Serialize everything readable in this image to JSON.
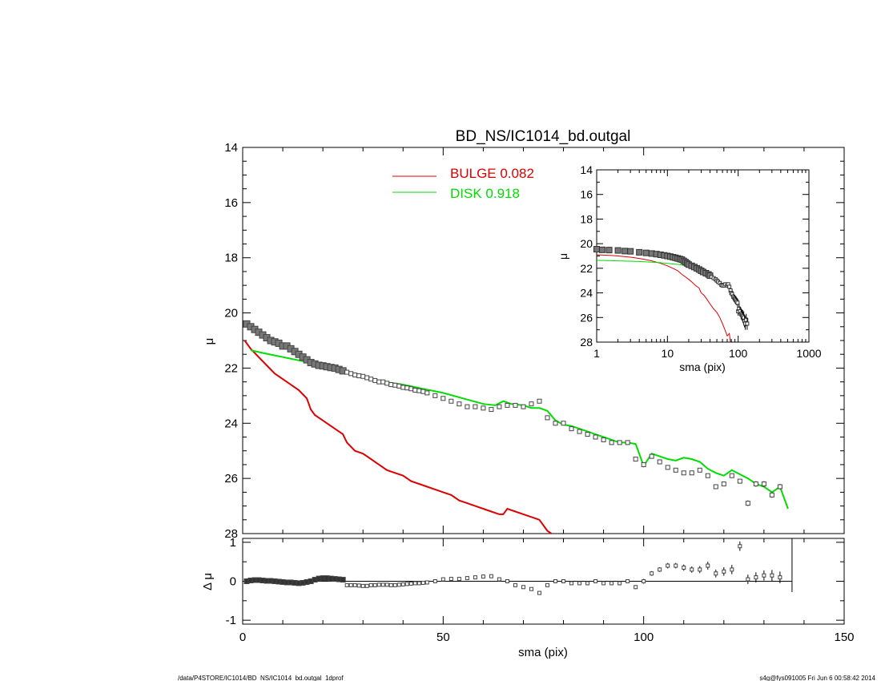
{
  "title": "BD_NS/IC1014_bd.outgal",
  "footer": {
    "left": "/data/P4STORE/IC1014/BD_NS/IC1014_bd.outgal_1dprof",
    "right": "s4g@fys091005  Fri Jun  6 00:58:42 2014"
  },
  "legend": [
    {
      "label": "BULGE  0.082",
      "color": "#dd0000"
    },
    {
      "label": "DISK  0.918",
      "color": "#00dd00"
    }
  ],
  "colors": {
    "bulge": "#dd0000",
    "disk": "#00dd00",
    "data": "#000000"
  },
  "chart_data": [
    {
      "type": "scatter",
      "panel": "main",
      "xlabel": "",
      "ylabel": "μ",
      "xlim": [
        0,
        150
      ],
      "ylim": [
        28,
        14
      ],
      "y_inverted": true,
      "yticks": [
        "14",
        "16",
        "18",
        "20",
        "22",
        "24",
        "26",
        "28"
      ],
      "data_points": {
        "x": [
          1,
          2,
          3,
          4,
          5,
          6,
          7,
          8,
          9,
          10,
          11,
          12,
          13,
          14,
          15,
          16,
          17,
          18,
          19,
          20,
          21,
          22,
          23,
          24,
          25,
          26,
          27,
          28,
          29,
          30,
          31,
          32,
          33,
          34,
          35,
          36,
          37,
          38,
          39,
          40,
          41,
          42,
          43,
          44,
          45,
          46,
          48,
          50,
          52,
          54,
          56,
          58,
          60,
          62,
          64,
          66,
          68,
          70,
          72,
          74,
          76,
          78,
          80,
          82,
          84,
          86,
          88,
          90,
          92,
          94,
          96,
          98,
          100,
          102,
          104,
          106,
          108,
          110,
          112,
          114,
          116,
          118,
          120,
          122,
          124,
          126,
          128,
          130,
          132,
          134
        ],
        "y": [
          20.4,
          20.5,
          20.6,
          20.7,
          20.8,
          20.9,
          21.0,
          21.05,
          21.1,
          21.2,
          21.2,
          21.3,
          21.4,
          21.5,
          21.6,
          21.7,
          21.8,
          21.85,
          21.9,
          21.92,
          21.95,
          21.98,
          22.0,
          22.05,
          22.1,
          22.15,
          22.2,
          22.25,
          22.28,
          22.3,
          22.35,
          22.4,
          22.45,
          22.5,
          22.5,
          22.55,
          22.6,
          22.62,
          22.65,
          22.7,
          22.72,
          22.75,
          22.8,
          22.82,
          22.85,
          22.9,
          23.0,
          23.1,
          23.2,
          23.3,
          23.4,
          23.4,
          23.45,
          23.5,
          23.4,
          23.35,
          23.35,
          23.4,
          23.3,
          23.2,
          23.8,
          24.0,
          24.0,
          24.2,
          24.3,
          24.4,
          24.5,
          24.6,
          24.7,
          24.7,
          24.7,
          25.3,
          25.5,
          25.2,
          25.4,
          25.6,
          25.7,
          25.8,
          25.8,
          25.7,
          25.9,
          26.3,
          26.2,
          25.9,
          26.1,
          26.9,
          26.2,
          26.2,
          26.6,
          26.3
        ],
        "err": [
          0.03,
          0.03,
          0.03,
          0.03,
          0.03,
          0.03,
          0.03,
          0.03,
          0.03,
          0.03,
          0.03,
          0.03,
          0.03,
          0.03,
          0.03,
          0.03,
          0.03,
          0.03,
          0.03,
          0.03,
          0.03,
          0.03,
          0.03,
          0.03,
          0.03,
          0.03,
          0.03,
          0.03,
          0.03,
          0.03,
          0.03,
          0.03,
          0.03,
          0.03,
          0.03,
          0.03,
          0.03,
          0.03,
          0.03,
          0.03,
          0.03,
          0.03,
          0.03,
          0.03,
          0.03,
          0.03,
          0.03,
          0.03,
          0.03,
          0.03,
          0.03,
          0.03,
          0.03,
          0.03,
          0.03,
          0.03,
          0.03,
          0.03,
          0.03,
          0.03,
          0.03,
          0.03,
          0.03,
          0.03,
          0.03,
          0.03,
          0.03,
          0.03,
          0.03,
          0.03,
          0.03,
          0.05,
          0.05,
          0.05,
          0.05,
          0.05,
          0.05,
          0.05,
          0.05,
          0.05,
          0.05,
          0.05,
          0.05,
          0.05,
          0.05,
          0.1,
          0.1,
          0.1,
          0.1,
          0.1
        ]
      },
      "series": [
        {
          "name": "BULGE",
          "x": [
            0.5,
            2,
            4,
            6,
            8,
            10,
            12,
            14,
            16,
            17,
            18,
            20,
            22,
            24,
            25,
            26,
            28,
            30,
            32,
            34,
            36,
            38,
            40,
            42,
            44,
            46,
            48,
            50,
            52,
            54,
            56,
            58,
            60,
            62,
            64,
            65,
            66,
            68,
            70,
            72,
            74,
            76,
            77
          ],
          "y": [
            21.0,
            21.3,
            21.6,
            21.9,
            22.2,
            22.4,
            22.6,
            22.8,
            23.1,
            23.5,
            23.7,
            23.9,
            24.1,
            24.3,
            24.4,
            24.7,
            25.0,
            25.1,
            25.3,
            25.5,
            25.7,
            25.8,
            25.9,
            26.1,
            26.2,
            26.3,
            26.4,
            26.5,
            26.6,
            26.8,
            26.9,
            27.0,
            27.1,
            27.2,
            27.3,
            27.3,
            27.1,
            27.2,
            27.3,
            27.4,
            27.5,
            27.9,
            28.0
          ]
        },
        {
          "name": "DISK",
          "x": [
            2,
            5,
            10,
            15,
            20,
            25,
            30,
            35,
            40,
            45,
            50,
            55,
            60,
            63,
            65,
            67,
            70,
            72,
            74,
            76,
            78,
            80,
            82,
            84,
            86,
            88,
            90,
            92,
            94,
            96,
            98,
            100,
            102,
            104,
            106,
            108,
            110,
            112,
            114,
            116,
            118,
            120,
            122,
            124,
            126,
            128,
            130,
            132,
            134,
            136
          ],
          "y": [
            21.35,
            21.45,
            21.6,
            21.75,
            21.95,
            22.1,
            22.3,
            22.5,
            22.6,
            22.75,
            22.9,
            23.1,
            23.3,
            23.35,
            23.2,
            23.3,
            23.35,
            23.45,
            23.45,
            23.55,
            23.9,
            24.05,
            24.1,
            24.2,
            24.3,
            24.4,
            24.5,
            24.6,
            24.7,
            24.7,
            24.75,
            25.55,
            25.1,
            25.2,
            25.3,
            25.35,
            25.25,
            25.3,
            25.4,
            25.65,
            25.8,
            25.9,
            25.7,
            25.85,
            26.0,
            26.2,
            26.3,
            26.5,
            26.3,
            27.1
          ]
        }
      ]
    },
    {
      "type": "scatter",
      "panel": "residual",
      "xlabel": "sma (pix)",
      "ylabel": "Δ μ",
      "xlim": [
        0,
        150
      ],
      "ylim": [
        -1.1,
        1.1
      ],
      "xticks": [
        "0",
        "50",
        "100",
        "150"
      ],
      "yticks": [
        "1",
        "0",
        "-1"
      ],
      "x_cutoff": 137,
      "data_points": {
        "x": [
          1,
          2,
          3,
          4,
          5,
          6,
          7,
          8,
          9,
          10,
          11,
          12,
          13,
          14,
          15,
          16,
          17,
          18,
          19,
          20,
          21,
          22,
          23,
          24,
          25,
          26,
          27,
          28,
          29,
          30,
          31,
          32,
          33,
          34,
          35,
          36,
          37,
          38,
          39,
          40,
          41,
          42,
          43,
          44,
          45,
          46,
          48,
          50,
          52,
          54,
          56,
          58,
          60,
          62,
          64,
          66,
          68,
          70,
          72,
          74,
          76,
          78,
          80,
          82,
          84,
          86,
          88,
          90,
          92,
          94,
          96,
          98,
          100,
          102,
          104,
          106,
          108,
          110,
          112,
          114,
          116,
          118,
          120,
          122,
          124,
          126,
          128,
          130,
          132,
          134
        ],
        "y": [
          0.0,
          0.02,
          0.03,
          0.03,
          0.02,
          0.01,
          0.01,
          0.0,
          -0.01,
          -0.02,
          -0.03,
          -0.03,
          -0.04,
          -0.05,
          -0.04,
          -0.02,
          0.0,
          0.04,
          0.07,
          0.08,
          0.08,
          0.07,
          0.06,
          0.05,
          0.04,
          -0.1,
          -0.1,
          -0.1,
          -0.11,
          -0.12,
          -0.12,
          -0.1,
          -0.1,
          -0.09,
          -0.09,
          -0.09,
          -0.1,
          -0.1,
          -0.09,
          -0.08,
          -0.07,
          -0.06,
          -0.05,
          -0.05,
          -0.04,
          -0.03,
          0.0,
          0.05,
          0.06,
          0.06,
          0.08,
          0.1,
          0.12,
          0.13,
          0.05,
          0.0,
          -0.1,
          -0.15,
          -0.2,
          -0.3,
          -0.1,
          0.0,
          0.0,
          -0.05,
          -0.05,
          -0.05,
          0.0,
          -0.05,
          -0.05,
          -0.05,
          0.0,
          -0.15,
          0.0,
          0.2,
          0.3,
          0.4,
          0.4,
          0.35,
          0.3,
          0.3,
          0.4,
          0.2,
          0.25,
          0.3,
          0.9,
          0.05,
          0.1,
          0.15,
          0.15,
          0.1
        ],
        "err": [
          0.02,
          0.02,
          0.02,
          0.02,
          0.02,
          0.02,
          0.02,
          0.02,
          0.02,
          0.02,
          0.02,
          0.02,
          0.02,
          0.02,
          0.02,
          0.02,
          0.02,
          0.02,
          0.02,
          0.02,
          0.02,
          0.02,
          0.02,
          0.02,
          0.02,
          0.02,
          0.02,
          0.02,
          0.02,
          0.02,
          0.02,
          0.02,
          0.02,
          0.02,
          0.02,
          0.02,
          0.02,
          0.02,
          0.02,
          0.02,
          0.02,
          0.02,
          0.02,
          0.02,
          0.02,
          0.02,
          0.02,
          0.02,
          0.02,
          0.02,
          0.02,
          0.02,
          0.02,
          0.02,
          0.03,
          0.03,
          0.03,
          0.03,
          0.03,
          0.04,
          0.04,
          0.04,
          0.04,
          0.04,
          0.04,
          0.05,
          0.05,
          0.05,
          0.05,
          0.05,
          0.05,
          0.05,
          0.06,
          0.06,
          0.06,
          0.07,
          0.07,
          0.08,
          0.08,
          0.09,
          0.1,
          0.1,
          0.11,
          0.12,
          0.12,
          0.12,
          0.13,
          0.13,
          0.14,
          0.15
        ]
      }
    },
    {
      "type": "scatter",
      "panel": "inset",
      "xscale": "log",
      "xlabel": "sma (pix)",
      "ylabel": "μ",
      "xlim": [
        1,
        1000
      ],
      "ylim": [
        28,
        14
      ],
      "y_inverted": true,
      "xticks": [
        "1",
        "10",
        "100",
        "1000"
      ],
      "yticks": [
        "14",
        "16",
        "18",
        "20",
        "22",
        "24",
        "26",
        "28"
      ],
      "data_points": {
        "x": [
          1,
          1.2,
          1.5,
          2,
          2.5,
          3,
          4,
          5,
          6,
          7,
          8,
          9,
          10,
          11,
          12,
          13,
          14,
          15,
          16,
          17,
          18,
          19,
          20,
          22,
          24,
          26,
          28,
          30,
          32,
          35,
          38,
          40,
          42,
          45,
          48,
          50,
          52,
          55,
          58,
          60,
          63,
          66,
          70,
          72,
          75,
          78,
          80,
          82,
          85,
          88,
          90,
          92,
          95,
          98,
          100,
          103,
          106,
          110,
          113,
          116,
          120,
          123,
          126,
          130,
          134
        ],
        "y": [
          20.45,
          20.5,
          20.52,
          20.55,
          20.6,
          20.62,
          20.7,
          20.75,
          20.8,
          20.85,
          20.9,
          20.95,
          21.0,
          21.05,
          21.1,
          21.15,
          21.2,
          21.25,
          21.3,
          21.4,
          21.5,
          21.6,
          21.7,
          21.8,
          21.9,
          22.0,
          22.1,
          22.2,
          22.3,
          22.4,
          22.5,
          22.6,
          22.7,
          22.8,
          22.9,
          23.0,
          23.1,
          23.2,
          23.35,
          23.4,
          23.4,
          23.3,
          23.4,
          23.3,
          23.5,
          23.8,
          24.0,
          24.1,
          24.3,
          24.4,
          24.5,
          24.6,
          24.7,
          24.8,
          25.5,
          25.3,
          25.5,
          25.7,
          25.8,
          25.9,
          26.0,
          26.3,
          26.5,
          26.2,
          26.5
        ],
        "err": [
          0.05,
          0.05,
          0.05,
          0.05,
          0.05,
          0.05,
          0.05,
          0.05,
          0.05,
          0.05,
          0.05,
          0.05,
          0.05,
          0.05,
          0.05,
          0.05,
          0.05,
          0.05,
          0.05,
          0.05,
          0.05,
          0.05,
          0.05,
          0.05,
          0.05,
          0.05,
          0.05,
          0.05,
          0.05,
          0.05,
          0.05,
          0.05,
          0.05,
          0.05,
          0.05,
          0.05,
          0.05,
          0.05,
          0.05,
          0.05,
          0.05,
          0.05,
          0.05,
          0.05,
          0.1,
          0.15,
          0.15,
          0.2,
          0.2,
          0.25,
          0.25,
          0.3,
          0.3,
          0.35,
          0.35,
          0.4,
          0.4,
          0.45,
          0.45,
          0.5,
          0.5,
          0.5,
          0.5,
          0.5,
          0.5
        ]
      },
      "series": [
        {
          "name": "BULGE",
          "x": [
            1,
            1.5,
            2,
            3,
            4,
            5,
            6,
            8,
            10,
            12,
            14,
            16,
            18,
            20,
            22,
            25,
            28,
            30,
            33,
            36,
            40,
            45,
            50,
            55,
            60,
            65,
            70,
            75,
            78
          ],
          "y": [
            20.9,
            20.95,
            21.0,
            21.1,
            21.2,
            21.3,
            21.4,
            21.6,
            21.8,
            22.0,
            22.2,
            22.5,
            22.7,
            22.9,
            23.1,
            23.4,
            23.6,
            24.0,
            24.2,
            24.5,
            24.9,
            25.3,
            25.6,
            26.0,
            26.5,
            27.0,
            27.5,
            27.3,
            28.0
          ]
        },
        {
          "name": "DISK",
          "x": [
            1,
            2,
            4,
            6,
            8,
            10,
            12,
            15,
            18
          ],
          "y": [
            21.35,
            21.4,
            21.45,
            21.5,
            21.55,
            21.6,
            21.65,
            21.7,
            21.8
          ]
        }
      ]
    }
  ]
}
